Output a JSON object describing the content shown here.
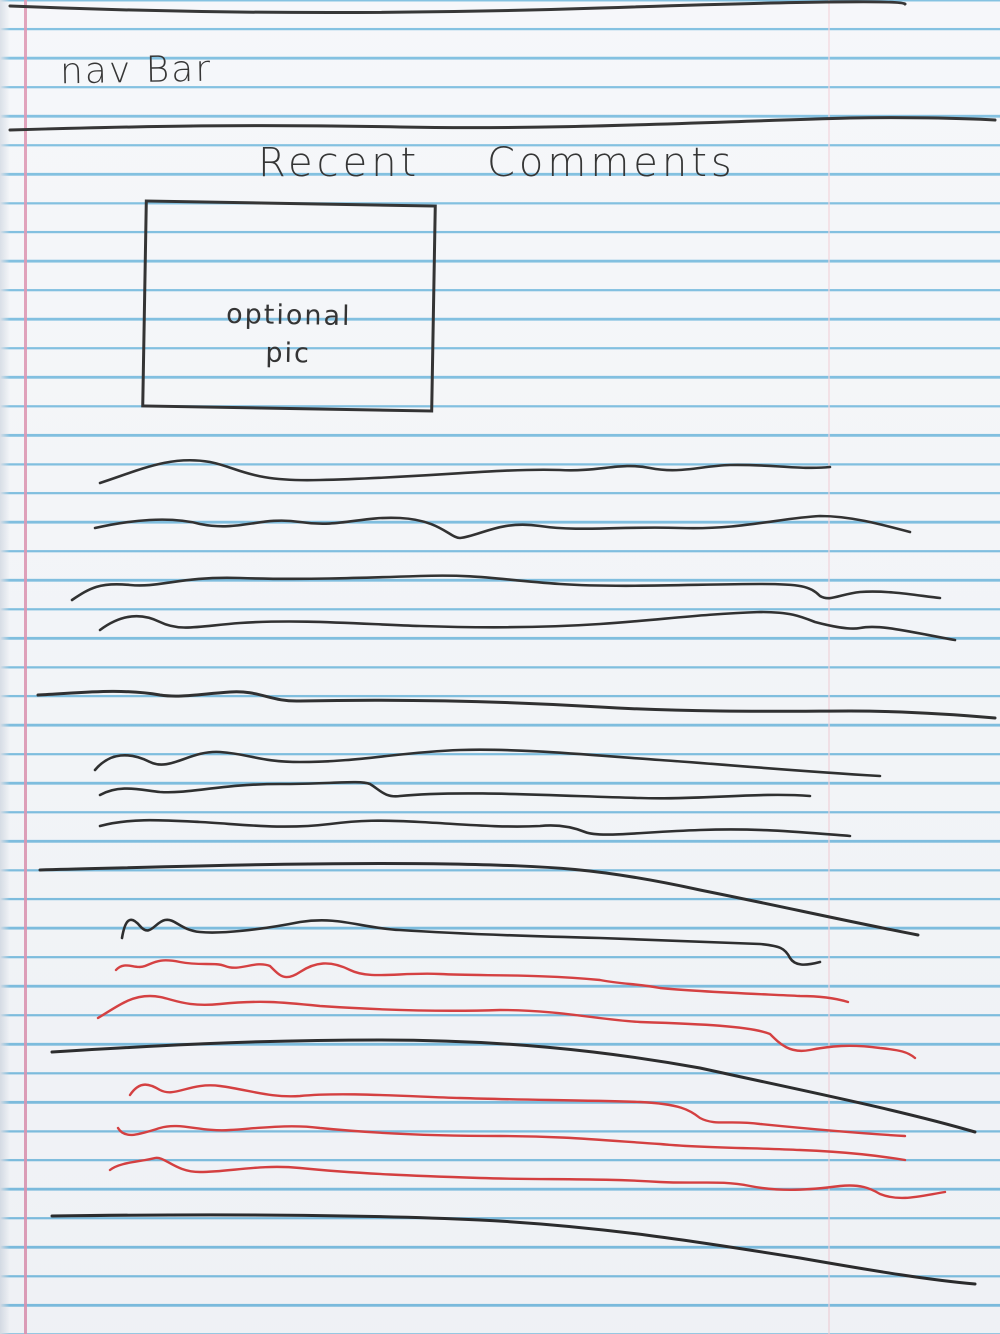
{
  "nav": {
    "label": "nav Bar"
  },
  "page": {
    "title": "Recent Comments"
  },
  "comments": [
    {
      "media": {
        "line1": "optional",
        "line2": "pic"
      },
      "text_lines": 4,
      "line_color": "#141414"
    },
    {
      "text_lines": 3,
      "line_color": "#141414"
    },
    {
      "text_lines": 3,
      "line_color": "#141414",
      "reply_line_color": "#d42a2a",
      "reply_lines": 2
    },
    {
      "text_lines": 3,
      "line_color": "#d42a2a"
    }
  ],
  "colors": {
    "ink": "#141414",
    "red_ink": "#d42a2a",
    "ruled_line": "#6fb7dc",
    "margin_line": "#d98aa8",
    "paper": "#f4f6f9"
  }
}
